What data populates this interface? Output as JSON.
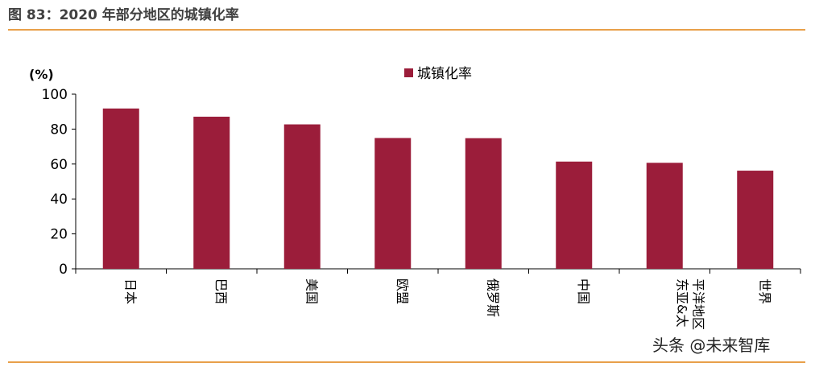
{
  "figure": {
    "title": "图 83：2020 年部分地区的城镇化率",
    "watermark": "头条 @未来智库"
  },
  "colors": {
    "bar": "#9b1d3a",
    "rule": "#e8a04a"
  },
  "chart_data": {
    "type": "bar",
    "title": "",
    "unit_label": "(%)",
    "xlabel": "",
    "ylabel": "",
    "ylim": [
      0,
      100
    ],
    "yticks": [
      0,
      20,
      40,
      60,
      80,
      100
    ],
    "grid": false,
    "legend_position": "top-center",
    "categories": [
      "日本",
      "巴西",
      "美国",
      "欧盟",
      "俄罗斯",
      "中国",
      "东亚&太平洋地区",
      "世界"
    ],
    "series": [
      {
        "name": "城镇化率",
        "values": [
          91.8,
          87.1,
          82.7,
          74.9,
          74.8,
          61.4,
          60.7,
          56.2
        ]
      }
    ]
  }
}
